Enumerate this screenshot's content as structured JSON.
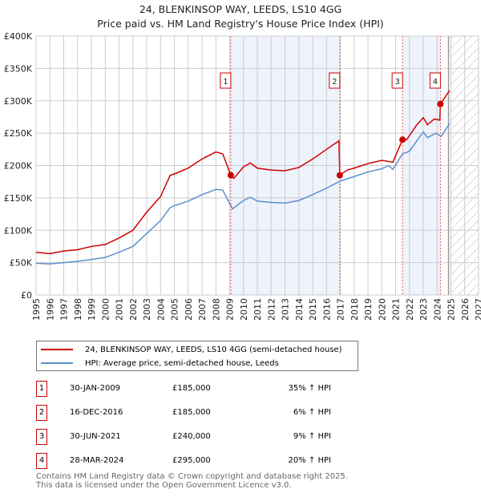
{
  "chart_data": {
    "type": "line",
    "title": "24, BLENKINSOP WAY, LEEDS, LS10 4GG",
    "subtitle": "Price paid vs. HM Land Registry's House Price Index (HPI)",
    "xlim": [
      1995,
      2027
    ],
    "ylim": [
      0,
      400000
    ],
    "x_ticks": [
      "1995",
      "1996",
      "1997",
      "1998",
      "1999",
      "2000",
      "2001",
      "2002",
      "2003",
      "2004",
      "2005",
      "2006",
      "2007",
      "2008",
      "2009",
      "2010",
      "2011",
      "2012",
      "2013",
      "2014",
      "2015",
      "2016",
      "2017",
      "2018",
      "2019",
      "2020",
      "2021",
      "2022",
      "2023",
      "2024",
      "2025",
      "2026",
      "2027"
    ],
    "y_ticks": [
      {
        "v": 0,
        "label": "£0"
      },
      {
        "v": 50000,
        "label": "£50K"
      },
      {
        "v": 100000,
        "label": "£100K"
      },
      {
        "v": 150000,
        "label": "£150K"
      },
      {
        "v": 200000,
        "label": "£200K"
      },
      {
        "v": 250000,
        "label": "£250K"
      },
      {
        "v": 300000,
        "label": "£300K"
      },
      {
        "v": 350000,
        "label": "£350K"
      },
      {
        "v": 400000,
        "label": "£400K"
      }
    ],
    "grid": true,
    "series": [
      {
        "name": "24, BLENKINSOP WAY, LEEDS, LS10 4GG (semi-detached house)",
        "color": "#cc0000",
        "x": [
          1995,
          1996,
          1997,
          1998,
          1999,
          2000,
          2001,
          2002,
          2003,
          2004,
          2004.7,
          2005,
          2006,
          2007,
          2008,
          2008.5,
          2009.08,
          2009.3,
          2010,
          2010.5,
          2011,
          2012,
          2013,
          2014,
          2015,
          2016,
          2016.9,
          2016.96,
          2017.5,
          2018,
          2019,
          2020,
          2020.8,
          2021.5,
          2021.8,
          2022.5,
          2023,
          2023.3,
          2023.8,
          2024.2,
          2024.24,
          2024.9
        ],
        "y": [
          66000,
          64000,
          68000,
          70000,
          75000,
          78000,
          88000,
          100000,
          128000,
          152000,
          185000,
          187000,
          196000,
          210000,
          221000,
          218000,
          185000,
          180000,
          198000,
          204000,
          196000,
          193000,
          192000,
          197000,
          210000,
          225000,
          238000,
          185000,
          193000,
          196000,
          203000,
          208000,
          205000,
          240000,
          240000,
          262000,
          274000,
          263000,
          272000,
          270000,
          295000,
          316000
        ]
      },
      {
        "name": "HPI: Average price, semi-detached house, Leeds",
        "color": "#5b8fd0",
        "x": [
          1995,
          1996,
          1997,
          1998,
          1999,
          2000,
          2001,
          2002,
          2003,
          2004,
          2004.7,
          2005,
          2006,
          2007,
          2008,
          2008.5,
          2009.2,
          2010,
          2010.5,
          2011,
          2012,
          2013,
          2014,
          2015,
          2016,
          2017,
          2018,
          2019,
          2020,
          2020.5,
          2020.8,
          2021.5,
          2022,
          2022.5,
          2023,
          2023.3,
          2023.9,
          2024.3,
          2024.9
        ],
        "y": [
          49000,
          48000,
          50000,
          52000,
          55000,
          58000,
          66000,
          75000,
          95000,
          115000,
          135000,
          138000,
          145000,
          155000,
          163000,
          162000,
          133000,
          146000,
          151000,
          145000,
          143000,
          142000,
          146000,
          155000,
          165000,
          176000,
          183000,
          190000,
          195000,
          200000,
          194000,
          218000,
          222000,
          237000,
          252000,
          243000,
          250000,
          245000,
          265000
        ]
      }
    ],
    "sales": [
      {
        "id": "1",
        "x": 2009.08,
        "date": "30-JAN-2009",
        "price": 185000,
        "price_label": "£185,000",
        "hpi": "35% ↑ HPI"
      },
      {
        "id": "2",
        "x": 2016.96,
        "date": "16-DEC-2016",
        "price": 185000,
        "price_label": "£185,000",
        "hpi": "6% ↑ HPI"
      },
      {
        "id": "3",
        "x": 2021.5,
        "date": "30-JUN-2021",
        "price": 240000,
        "price_label": "£240,000",
        "hpi": "9% ↑ HPI"
      },
      {
        "id": "4",
        "x": 2024.24,
        "date": "28-MAR-2024",
        "price": 295000,
        "price_label": "£295,000",
        "hpi": "20% ↑ HPI"
      }
    ],
    "shaded_spans": [
      [
        2009.08,
        2016.96
      ],
      [
        2021.5,
        2024.24
      ]
    ],
    "forecast_from": 2025
  },
  "footer": {
    "line1": "Contains HM Land Registry data © Crown copyright and database right 2025.",
    "line2": "This data is licensed under the Open Government Licence v3.0."
  }
}
